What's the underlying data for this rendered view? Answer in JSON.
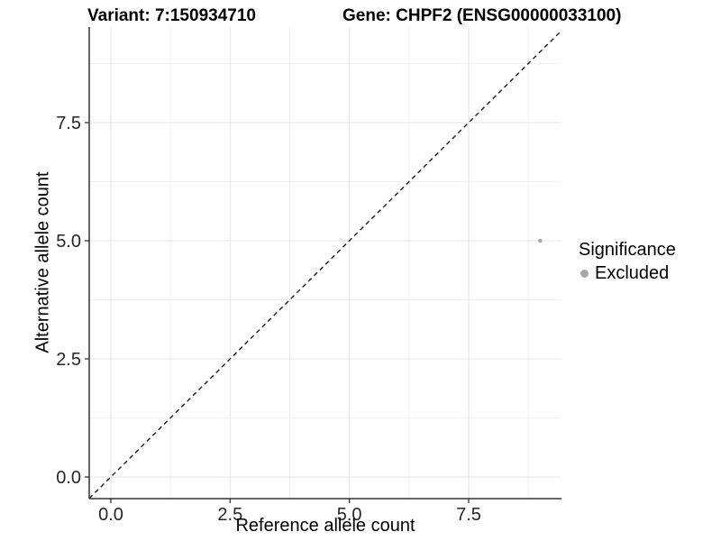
{
  "header": {
    "variant_title": "Variant: 7:150934710",
    "gene_title": "Gene: CHPF2 (ENSG00000033100)"
  },
  "chart_data": {
    "type": "scatter",
    "xlabel": "Reference allele count",
    "ylabel": "Alternative allele count",
    "xlim": [
      -0.453,
      9.446
    ],
    "ylim": [
      -0.458,
      9.523
    ],
    "x_major_breaks": [
      0,
      2.5,
      5,
      7.5
    ],
    "x_minor_breaks": [
      1.25,
      3.75,
      6.25,
      8.75
    ],
    "y_major_breaks": [
      0,
      2.5,
      5,
      7.5
    ],
    "y_minor_breaks": [
      1.25,
      3.75,
      6.25,
      8.75
    ],
    "x_tick_labels": [
      "0.0",
      "2.5",
      "5.0",
      "7.5"
    ],
    "y_tick_labels": [
      "0.0",
      "2.5",
      "5.0",
      "7.5"
    ],
    "grid": "major+minor",
    "points": [
      {
        "x": 9,
        "y": 5,
        "significance": "Excluded"
      }
    ],
    "identity_line": {
      "style": "dashed",
      "slope": 1,
      "intercept": 0
    },
    "legend": {
      "position": "right",
      "title": "Significance",
      "entries": [
        {
          "label": "Excluded",
          "color": "#a8a8a8"
        }
      ]
    },
    "colors": {
      "point": "#a8a8a8",
      "axis": "#333333",
      "tick_text": "#262626",
      "grid_major": "#e4e4e4",
      "grid_minor": "#f0f0f0",
      "identity_line": "#1a1a1a",
      "background": "#ffffff"
    }
  }
}
